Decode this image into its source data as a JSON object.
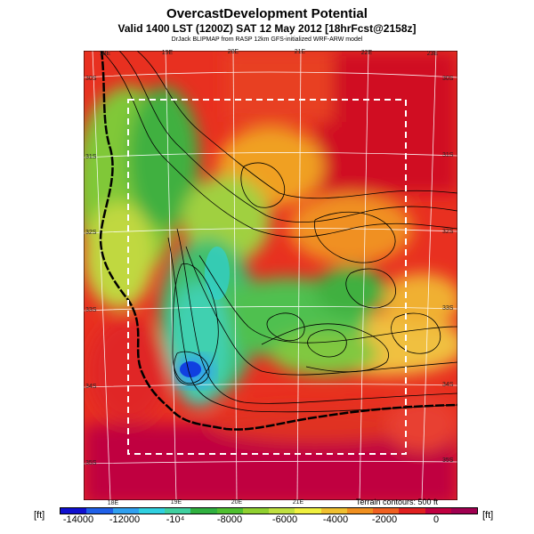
{
  "header": {
    "title": "OvercastDevelopment Potential",
    "subtitle": "Valid 1400 LST (1200Z) SAT 12 May 2012 [18hrFcst@2158z]",
    "credit": "DrJack BLIPMAP from RASP 12km GFS-initialized WRF-ARW model"
  },
  "lon_top": [
    "18E",
    "19E",
    "20E",
    "21E",
    "22E",
    "23E"
  ],
  "lon_bottom": [
    "18E",
    "19E",
    "20E",
    "21E"
  ],
  "lat_left": [
    "30S",
    "31S",
    "32S",
    "33S",
    "34S",
    "35S"
  ],
  "lat_right": [
    "30S",
    "31S",
    "32S",
    "33S",
    "34S",
    "35S"
  ],
  "colorbar": {
    "labels": [
      "-14000",
      "-12000",
      "-10⁴",
      "-8000",
      "-6000",
      "-4000",
      "-2000",
      "0"
    ],
    "unit_left": "[ft]",
    "unit_right": "[ft]",
    "colors": [
      "#1010d0",
      "#2060e8",
      "#30a0f0",
      "#30d0e0",
      "#40d0a0",
      "#30b040",
      "#50c030",
      "#90d030",
      "#c0e040",
      "#f0f040",
      "#f0c030",
      "#f09020",
      "#f06020",
      "#e02020",
      "#c00040",
      "#a00050"
    ]
  },
  "terrain_note": "Terrain contours: 500 ft"
}
